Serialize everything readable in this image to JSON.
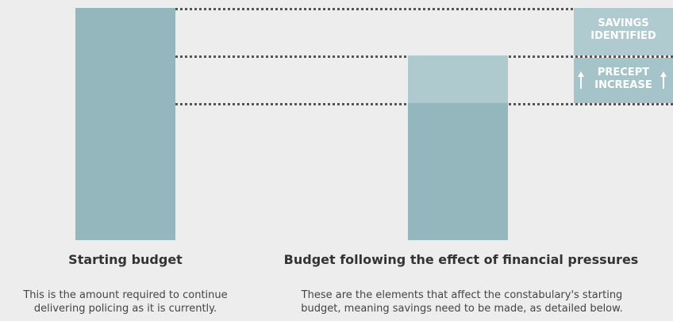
{
  "colors": {
    "bar_dark": "#94b7be",
    "bar_light": "#afcace",
    "savings_box": "#b0cbd0",
    "precept_box": "#a4c4c9"
  },
  "annotations": {
    "savings": "SAVINGS IDENTIFIED",
    "precept": "PRECEPT INCREASE"
  },
  "columns": [
    {
      "heading": "Starting budget",
      "description": "This is the amount required to continue delivering policing as it is currently."
    },
    {
      "heading": "Budget following the effect of financial pressures",
      "description": "These are the elements that affect the constabulary's starting budget, meaning savings need to be made, as detailed below."
    }
  ]
}
